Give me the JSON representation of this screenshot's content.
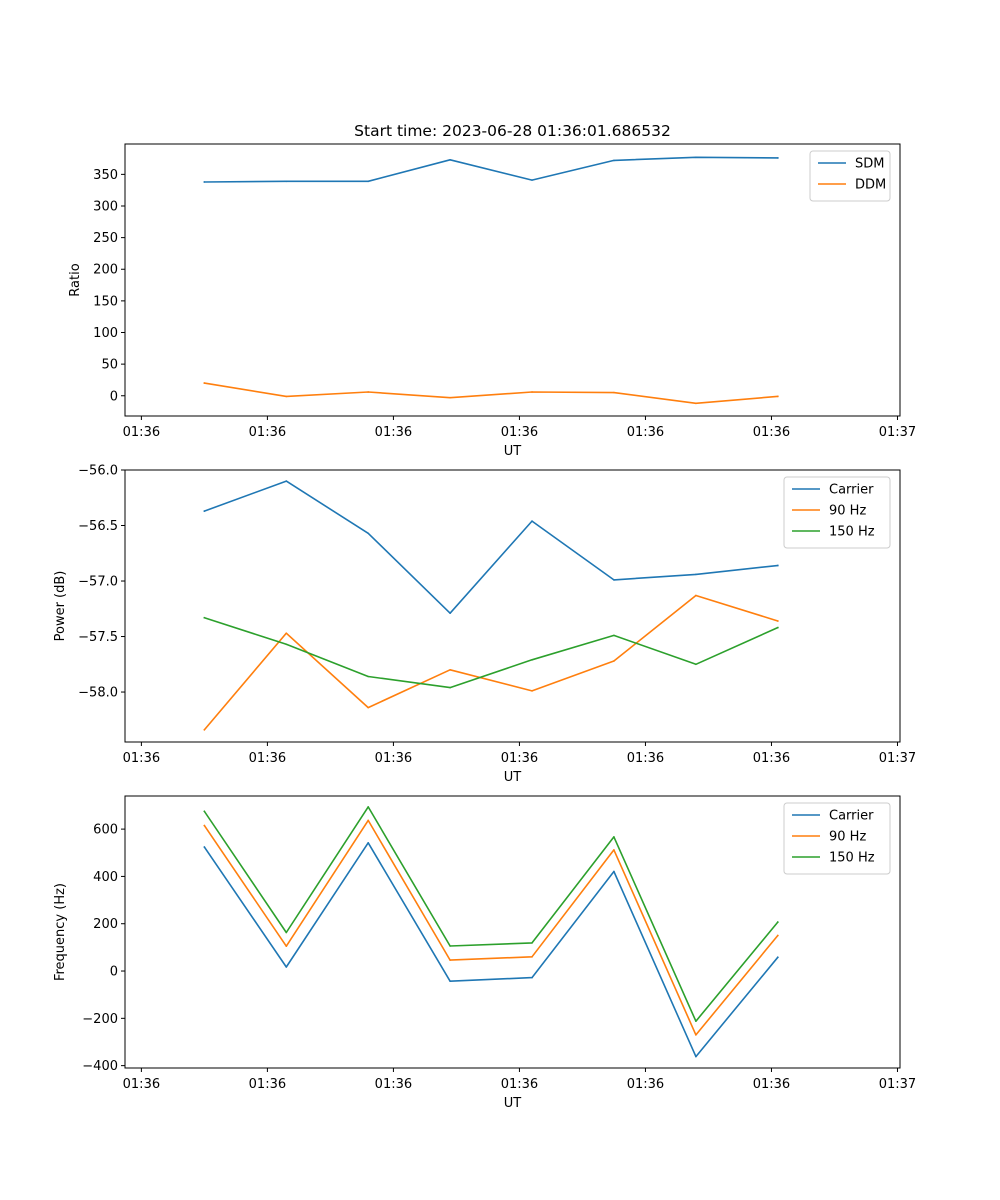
{
  "figure": {
    "title": "Start time: 2023-06-28 01:36:01.686532"
  },
  "chart_data": [
    {
      "type": "line",
      "title": "Start time: 2023-06-28 01:36:01.686532",
      "xlabel": "UT",
      "ylabel": "Ratio",
      "x_tick_labels": [
        "01:36",
        "01:36",
        "01:36",
        "01:36",
        "01:36",
        "01:36",
        "01:37"
      ],
      "x": [
        0.5,
        1.15,
        1.8,
        2.45,
        3.1,
        3.75,
        4.4,
        5.05
      ],
      "xlim": [
        -0.13,
        6.02
      ],
      "ylim": [
        -32,
        398
      ],
      "y_ticks": [
        0,
        50,
        100,
        150,
        200,
        250,
        300,
        350
      ],
      "grid": false,
      "legend_position": "top-right",
      "series": [
        {
          "name": "SDM",
          "color": "#1f77b4",
          "values": [
            338,
            339,
            339,
            373,
            341,
            372,
            377,
            376
          ]
        },
        {
          "name": "DDM",
          "color": "#ff7f0e",
          "values": [
            20,
            -1,
            6,
            -3,
            6,
            5,
            -12,
            -1
          ]
        }
      ]
    },
    {
      "type": "line",
      "xlabel": "UT",
      "ylabel": "Power (dB)",
      "x_tick_labels": [
        "01:36",
        "01:36",
        "01:36",
        "01:36",
        "01:36",
        "01:36",
        "01:37"
      ],
      "x": [
        0.5,
        1.15,
        1.8,
        2.45,
        3.1,
        3.75,
        4.4,
        5.05
      ],
      "xlim": [
        -0.13,
        6.02
      ],
      "ylim": [
        -58.45,
        -56.0
      ],
      "y_ticks": [
        -58.0,
        -57.5,
        -57.0,
        -56.5,
        -56.0
      ],
      "grid": false,
      "legend_position": "top-right",
      "series": [
        {
          "name": "Carrier",
          "color": "#1f77b4",
          "values": [
            -56.37,
            -56.1,
            -56.57,
            -57.29,
            -56.46,
            -56.99,
            -56.94,
            -56.86
          ]
        },
        {
          "name": "90 Hz",
          "color": "#ff7f0e",
          "values": [
            -58.34,
            -57.47,
            -58.14,
            -57.8,
            -57.99,
            -57.72,
            -57.13,
            -57.36
          ]
        },
        {
          "name": "150 Hz",
          "color": "#2ca02c",
          "values": [
            -57.33,
            -57.57,
            -57.86,
            -57.96,
            -57.71,
            -57.49,
            -57.75,
            -57.42
          ]
        }
      ]
    },
    {
      "type": "line",
      "xlabel": "UT",
      "ylabel": "Frequency (Hz)",
      "x_tick_labels": [
        "01:36",
        "01:36",
        "01:36",
        "01:36",
        "01:36",
        "01:36",
        "01:37"
      ],
      "x": [
        0.5,
        1.15,
        1.8,
        2.45,
        3.1,
        3.75,
        4.4,
        5.05
      ],
      "xlim": [
        -0.13,
        6.02
      ],
      "ylim": [
        -410,
        740
      ],
      "y_ticks": [
        -400,
        -200,
        0,
        200,
        400,
        600
      ],
      "grid": false,
      "legend_position": "top-right",
      "series": [
        {
          "name": "Carrier",
          "color": "#1f77b4",
          "values": [
            524,
            17,
            542,
            -43,
            -28,
            421,
            -362,
            58
          ]
        },
        {
          "name": "90 Hz",
          "color": "#ff7f0e",
          "values": [
            615,
            105,
            637,
            46,
            60,
            512,
            -270,
            150
          ]
        },
        {
          "name": "150 Hz",
          "color": "#2ca02c",
          "values": [
            675,
            163,
            694,
            106,
            119,
            567,
            -212,
            207
          ]
        }
      ]
    }
  ]
}
